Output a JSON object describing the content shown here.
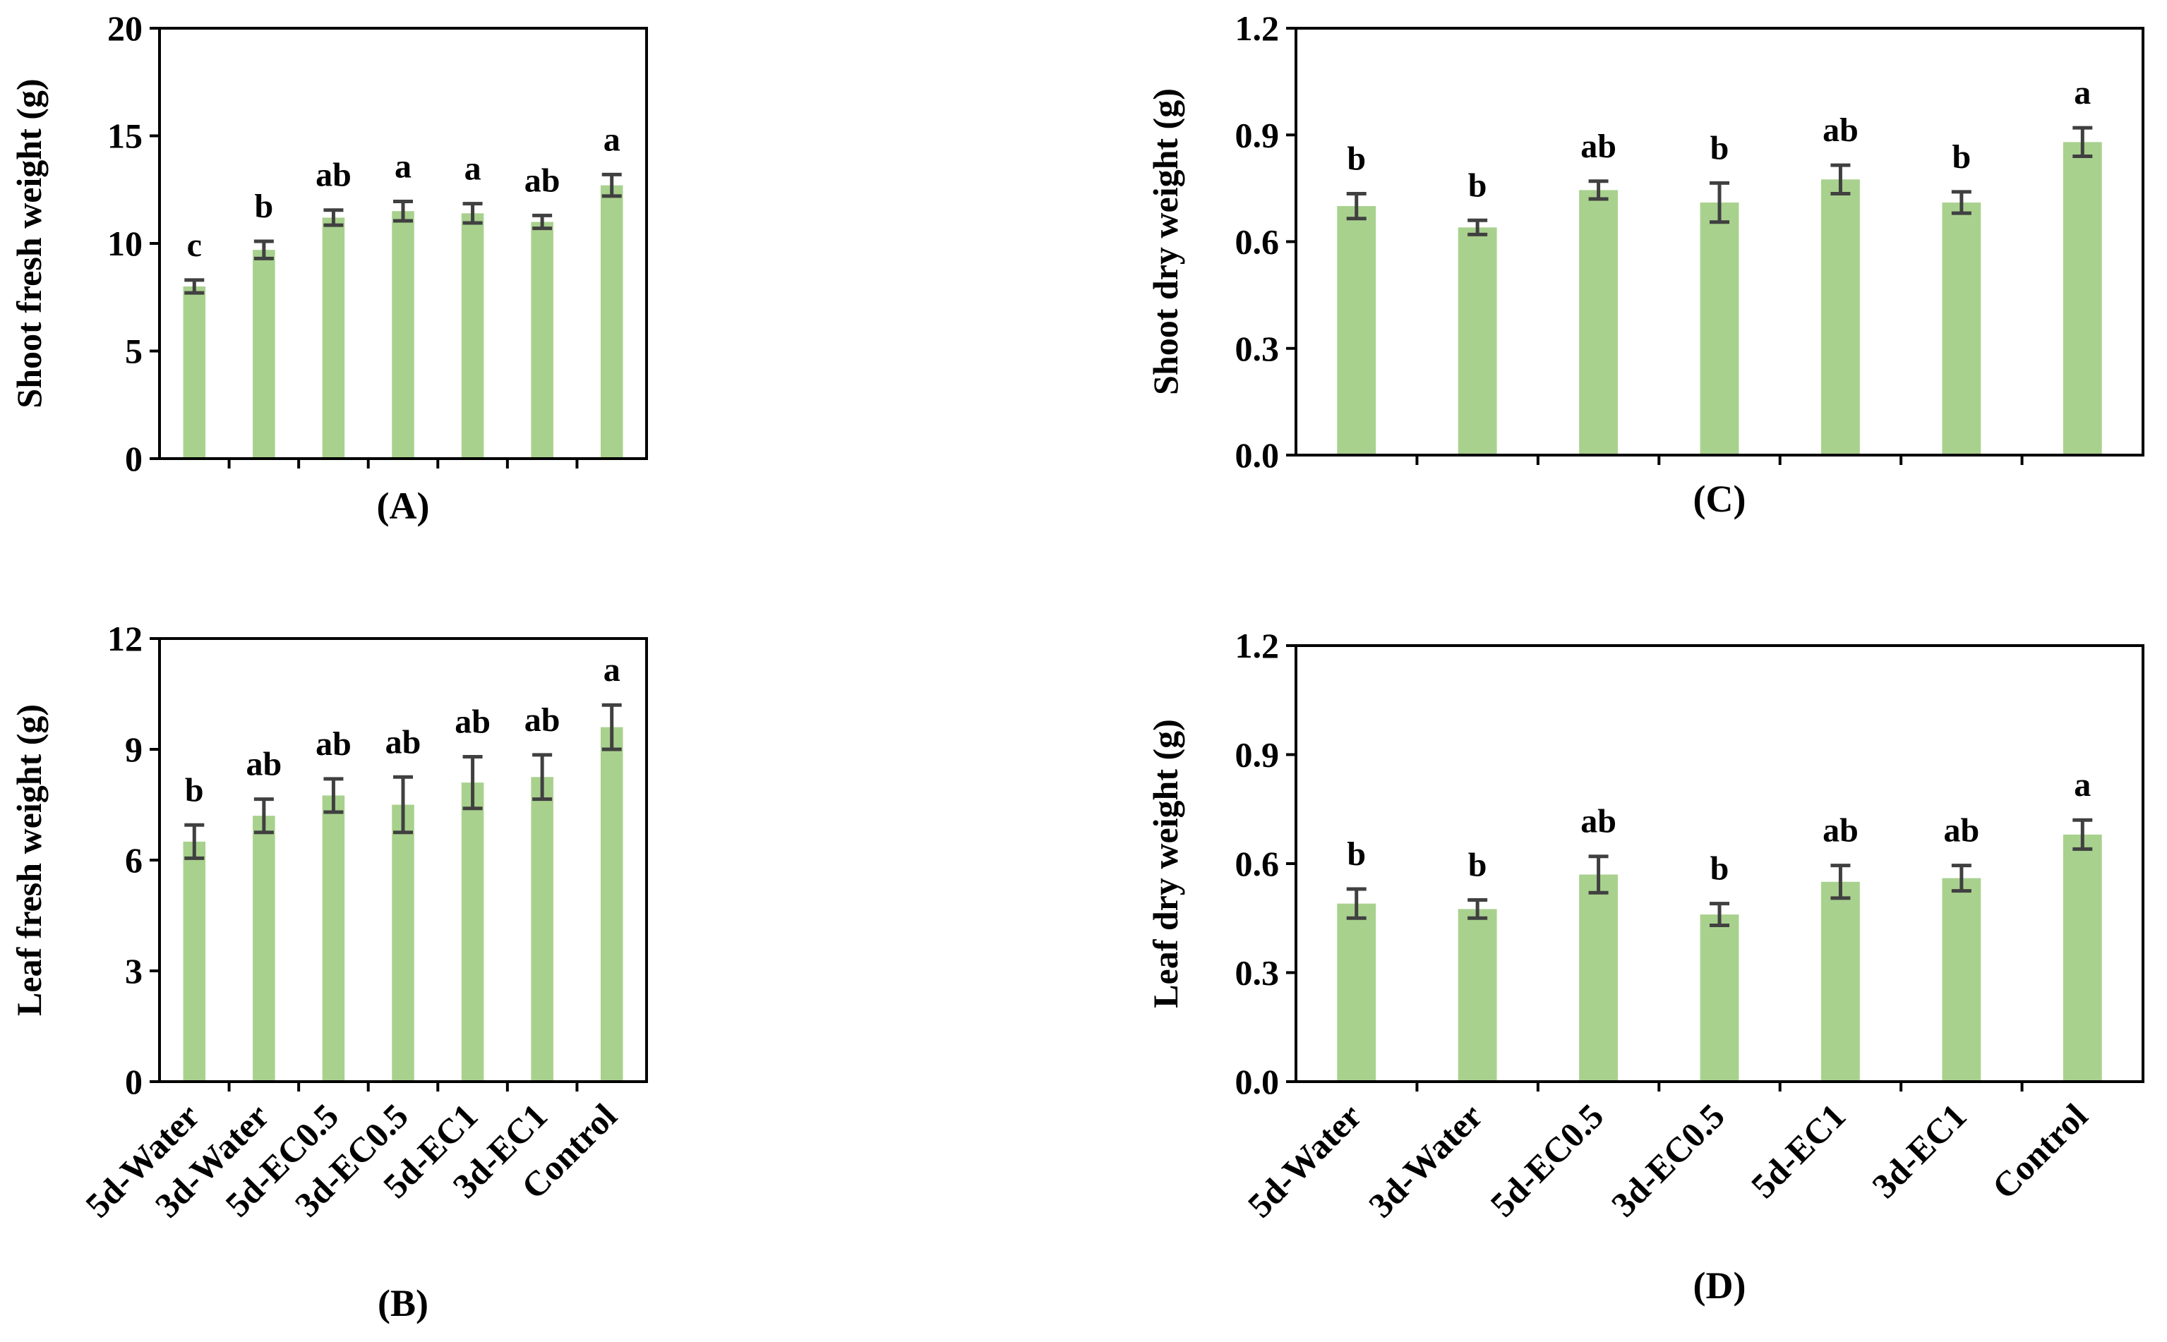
{
  "bar_color": "#a9d18e",
  "error_color": "#404040",
  "categories": [
    "5d-Water",
    "3d-Water",
    "5d-EC0.5",
    "3d-EC0.5",
    "5d-EC1",
    "3d-EC1",
    "Control"
  ],
  "chart_data": [
    {
      "id": "A",
      "type": "bar",
      "panel_label": "(A)",
      "ylabel": "Shoot fresh weight (g)",
      "ylim": [
        0,
        20
      ],
      "yticks": [
        0,
        5,
        10,
        15,
        20
      ],
      "ytick_labels": [
        "0",
        "5",
        "10",
        "15",
        "20"
      ],
      "show_category_labels": false,
      "categories": [
        "5d-Water",
        "3d-Water",
        "5d-EC0.5",
        "3d-EC0.5",
        "5d-EC1",
        "3d-EC1",
        "Control"
      ],
      "values": [
        8.0,
        9.7,
        11.2,
        11.5,
        11.4,
        11.0,
        12.7
      ],
      "errors": [
        0.3,
        0.4,
        0.35,
        0.45,
        0.45,
        0.3,
        0.5
      ],
      "significance": [
        "c",
        "b",
        "ab",
        "a",
        "a",
        "ab",
        "a"
      ]
    },
    {
      "id": "C",
      "type": "bar",
      "panel_label": "(C)",
      "ylabel": "Shoot dry weight (g)",
      "ylim": [
        0,
        1.2
      ],
      "yticks": [
        0,
        0.3,
        0.6,
        0.9,
        1.2
      ],
      "ytick_labels": [
        "0.0",
        "0.3",
        "0.6",
        "0.9",
        "1.2"
      ],
      "show_category_labels": false,
      "categories": [
        "5d-Water",
        "3d-Water",
        "5d-EC0.5",
        "3d-EC0.5",
        "5d-EC1",
        "3d-EC1",
        "Control"
      ],
      "values": [
        0.7,
        0.64,
        0.745,
        0.71,
        0.775,
        0.71,
        0.88
      ],
      "errors": [
        0.035,
        0.02,
        0.025,
        0.055,
        0.04,
        0.03,
        0.04
      ],
      "significance": [
        "b",
        "b",
        "ab",
        "b",
        "ab",
        "b",
        "a"
      ]
    },
    {
      "id": "B",
      "type": "bar",
      "panel_label": "(B)",
      "ylabel": "Leaf fresh weight (g)",
      "ylim": [
        0,
        12
      ],
      "yticks": [
        0,
        3,
        6,
        9,
        12
      ],
      "ytick_labels": [
        "0",
        "3",
        "6",
        "9",
        "12"
      ],
      "show_category_labels": true,
      "categories": [
        "5d-Water",
        "3d-Water",
        "5d-EC0.5",
        "3d-EC0.5",
        "5d-EC1",
        "3d-EC1",
        "Control"
      ],
      "values": [
        6.5,
        7.2,
        7.75,
        7.5,
        8.1,
        8.25,
        9.6
      ],
      "errors": [
        0.45,
        0.45,
        0.45,
        0.75,
        0.7,
        0.6,
        0.6
      ],
      "significance": [
        "b",
        "ab",
        "ab",
        "ab",
        "ab",
        "ab",
        "a"
      ]
    },
    {
      "id": "D",
      "type": "bar",
      "panel_label": "(D)",
      "ylabel": "Leaf dry weight (g)",
      "ylim": [
        0,
        1.2
      ],
      "yticks": [
        0,
        0.3,
        0.6,
        0.9,
        1.2
      ],
      "ytick_labels": [
        "0.0",
        "0.3",
        "0.6",
        "0.9",
        "1.2"
      ],
      "show_category_labels": true,
      "categories": [
        "5d-Water",
        "3d-Water",
        "5d-EC0.5",
        "3d-EC0.5",
        "5d-EC1",
        "3d-EC1",
        "Control"
      ],
      "values": [
        0.49,
        0.475,
        0.57,
        0.46,
        0.55,
        0.56,
        0.68
      ],
      "errors": [
        0.04,
        0.025,
        0.05,
        0.03,
        0.045,
        0.035,
        0.04
      ],
      "significance": [
        "b",
        "b",
        "ab",
        "b",
        "ab",
        "ab",
        "a"
      ]
    }
  ]
}
